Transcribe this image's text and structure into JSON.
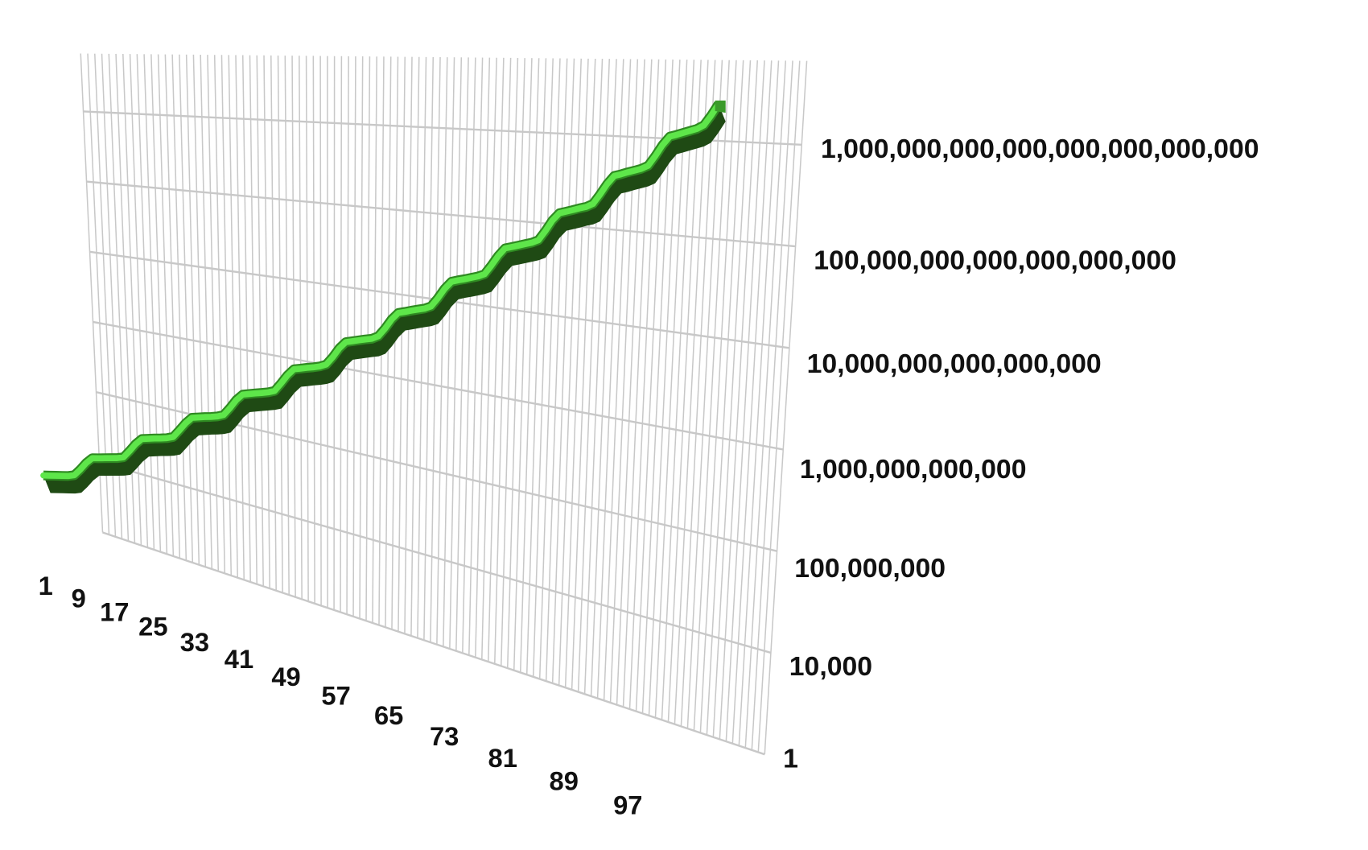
{
  "chart_data": {
    "type": "line",
    "style": "3d",
    "title": "",
    "xlabel": "",
    "ylabel": "",
    "y_scale": "log",
    "ylim": [
      1,
      1e+27
    ],
    "grid": true,
    "legend": "none",
    "x_tick_labels": [
      "1",
      "9",
      "17",
      "25",
      "33",
      "41",
      "49",
      "57",
      "65",
      "73",
      "81",
      "89",
      "97"
    ],
    "y_tick_labels": [
      "1",
      "10,000",
      "100,000,000",
      "1,000,000,000,000",
      "10,000,000,000,000,000",
      "100,000,000,000,000,000,000",
      "1,000,000,000,000,000,000,000,000"
    ],
    "y_tick_values": [
      1,
      10000.0,
      100000000.0,
      1000000000000.0,
      1e+16,
      1e+20,
      1e+24
    ],
    "x_start": 1,
    "series": [
      {
        "color": "#5ee64a",
        "shade_color": "#1f4a14",
        "values": [
          1000000.0,
          1200000.0,
          1450000.0,
          1740000.0,
          2090000.0,
          2820000.0,
          7080000.0,
          20000000.0,
          44000000.0,
          52000000.0,
          63000000.0,
          76000000.0,
          91000000.0,
          120000000.0,
          310000000.0,
          870000000.0,
          1900000000.0,
          2300000000.0,
          2800000000.0,
          3300000000.0,
          4000000000.0,
          5400000000.0,
          14000000000.0,
          38000000000.0,
          83000000000.0,
          100000000000.0,
          120000000000.0,
          140000000000.0,
          170000000000.0,
          230000000000.0,
          590000000000.0,
          1700000000000.0,
          3600000000000.0,
          4400000000000.0,
          5300000000000.0,
          6300000000000.0,
          7600000000000.0,
          10000000000000.0,
          26000000000000.0,
          73000000000000.0,
          160000000000000.0,
          190000000000000.0,
          230000000000000.0,
          270000000000000.0,
          330000000000000.0,
          450000000000000.0,
          1100000000000000.0,
          3200000000000000.0,
          6900000000000000.0,
          8300000000000000.0,
          1e+16,
          1.2e+16,
          1.4e+16,
          2e+16,
          4.9e+16,
          1.4e+17,
          3e+17,
          3.6e+17,
          4.4e+17,
          5.3e+17,
          6.3e+17,
          8.5e+17,
          2.1e+18,
          6e+18,
          1.3e+19,
          1.6e+19,
          1.9e+19,
          2.3e+19,
          2.8e+19,
          3.7e+19,
          9.3e+19,
          2.6e+20,
          5.8e+20,
          6.9e+20,
          8.3e+20,
          1e+21,
          1.2e+21,
          1.6e+21,
          4.1e+21,
          1.2e+22,
          2.5e+22,
          3e+22,
          3.6e+22,
          4.4e+22,
          5.2e+22,
          7.1e+22,
          1.8e+23,
          5e+23,
          1.1e+24,
          1.3e+24,
          1.6e+24,
          1.9e+24,
          2.3e+24,
          3.1e+24,
          7.8e+24,
          2.2e+25,
          4.8e+25,
          5.7e+25,
          6.9e+25,
          8.3e+25,
          1e+26,
          1.4e+26,
          3.4e+26,
          9.6e+26
        ]
      }
    ],
    "grid_color": "#c8c8c8"
  }
}
